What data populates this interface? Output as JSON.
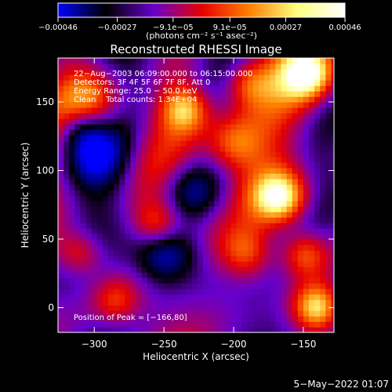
{
  "chart_data": {
    "type": "heatmap",
    "title": "Reconstructed RHESSI Image",
    "xlabel": "Heliocentric X (arcsec)",
    "ylabel": "Heliocentric Y (arcsec)",
    "xlim": [
      -326,
      -128
    ],
    "ylim": [
      -18,
      182
    ],
    "x_ticks": [
      -300,
      -250,
      -200,
      -150
    ],
    "x_tick_labels": [
      "−300",
      "−250",
      "−200",
      "−150"
    ],
    "y_ticks": [
      0,
      50,
      100,
      150
    ],
    "y_tick_labels": [
      "0",
      "50",
      "100",
      "150"
    ],
    "colorbar": {
      "range": [
        -0.00046,
        0.00046
      ],
      "ticks": [
        -0.00046,
        -0.00027,
        -9.1e-05,
        9.1e-05,
        0.00027,
        0.00046
      ],
      "tick_labels": [
        "−0.00046",
        "−0.00027",
        "−9.1e−05",
        "9.1e−05",
        "0.00027",
        "0.00046"
      ],
      "units": "(photons cm⁻² s⁻¹ asec⁻²)",
      "colors": [
        "#0000ff",
        "#000000",
        "#6600cc",
        "#e60000",
        "#ff8000",
        "#ffff80",
        "#ffffff"
      ]
    },
    "annotations": [
      "22−Aug−2003 06:09:00.000 to 06:15:00.000",
      "Detectors: 3F 4F 5F 6F 7F 8F, Att 0",
      "Energy Range: 25.0 − 50.0 keV",
      "Clean    Total counts: 1.34E+04"
    ],
    "peak_label": "Position of Peak = [−166,80]",
    "peak": [
      -166,
      80
    ],
    "grid": false,
    "legend": "none"
  },
  "footer": {
    "date": "5−May−2022 01:07"
  }
}
